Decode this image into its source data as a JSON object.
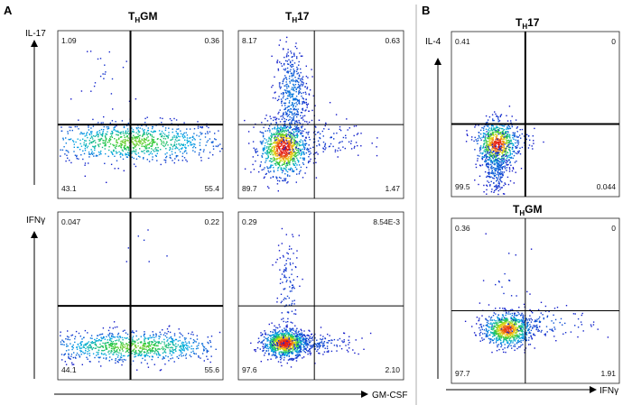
{
  "figure": {
    "panel_a": {
      "letter": "A"
    },
    "panel_b": {
      "letter": "B"
    }
  },
  "chart_data": [
    {
      "type": "scatter",
      "subtype": "flow-cytometry-density",
      "panel": "A",
      "title_main": "T",
      "title_sub": "H",
      "title_rest": "GM",
      "xlabel": "",
      "ylabel": "IL-17",
      "quadrants": {
        "upper_left": "1.09",
        "upper_right": "0.36",
        "lower_left": "43.1",
        "lower_right": "55.4"
      },
      "gate": [
        0.44,
        0.44
      ],
      "populations": [
        {
          "cx": 0.45,
          "cy": 0.34,
          "sx": 0.28,
          "sy": 0.06,
          "n": 900,
          "peak": 0.55
        },
        {
          "cx": 0.3,
          "cy": 0.75,
          "sx": 0.1,
          "sy": 0.12,
          "n": 25,
          "peak": 0.05
        }
      ]
    },
    {
      "type": "scatter",
      "subtype": "flow-cytometry-density",
      "panel": "A",
      "title_main": "T",
      "title_sub": "H",
      "title_rest": "17",
      "xlabel": "GM-CSF",
      "ylabel": "",
      "quadrants": {
        "upper_left": "8.17",
        "upper_right": "0.63",
        "lower_left": "89.7",
        "lower_right": "1.47"
      },
      "gate": [
        0.46,
        0.44
      ],
      "populations": [
        {
          "cx": 0.27,
          "cy": 0.3,
          "sx": 0.07,
          "sy": 0.08,
          "n": 900,
          "peak": 0.95
        },
        {
          "cx": 0.32,
          "cy": 0.62,
          "sx": 0.05,
          "sy": 0.15,
          "n": 450,
          "peak": 0.18
        },
        {
          "cx": 0.5,
          "cy": 0.36,
          "sx": 0.14,
          "sy": 0.06,
          "n": 120,
          "peak": 0.08
        }
      ]
    },
    {
      "type": "scatter",
      "subtype": "flow-cytometry-density",
      "panel": "A",
      "title_main": "",
      "title_sub": "",
      "title_rest": "",
      "xlabel": "",
      "ylabel": "IFNγ",
      "quadrants": {
        "upper_left": "0.047",
        "upper_right": "0.22",
        "lower_left": "44.1",
        "lower_right": "55.6"
      },
      "gate": [
        0.44,
        0.44
      ],
      "populations": [
        {
          "cx": 0.45,
          "cy": 0.2,
          "sx": 0.27,
          "sy": 0.045,
          "n": 900,
          "peak": 0.55
        },
        {
          "cx": 0.55,
          "cy": 0.8,
          "sx": 0.15,
          "sy": 0.08,
          "n": 8,
          "peak": 0.05
        }
      ]
    },
    {
      "type": "scatter",
      "subtype": "flow-cytometry-density",
      "panel": "A",
      "title_main": "",
      "title_sub": "",
      "title_rest": "",
      "xlabel": "",
      "ylabel": "",
      "quadrants": {
        "upper_left": "0.29",
        "upper_right": "8.54E-3",
        "lower_left": "97.6",
        "lower_right": "2.10"
      },
      "gate": [
        0.46,
        0.44
      ],
      "populations": [
        {
          "cx": 0.28,
          "cy": 0.22,
          "sx": 0.065,
          "sy": 0.04,
          "n": 950,
          "peak": 0.95
        },
        {
          "cx": 0.3,
          "cy": 0.55,
          "sx": 0.04,
          "sy": 0.18,
          "n": 120,
          "peak": 0.08
        },
        {
          "cx": 0.45,
          "cy": 0.22,
          "sx": 0.14,
          "sy": 0.035,
          "n": 200,
          "peak": 0.1
        }
      ]
    },
    {
      "type": "scatter",
      "subtype": "flow-cytometry-density",
      "panel": "B",
      "title_main": "T",
      "title_sub": "H",
      "title_rest": "17",
      "xlabel": "",
      "ylabel": "IL-4",
      "quadrants": {
        "upper_left": "0.41",
        "upper_right": "0",
        "lower_left": "99.5",
        "lower_right": "0.044"
      },
      "gate": [
        0.44,
        0.44
      ],
      "populations": [
        {
          "cx": 0.27,
          "cy": 0.32,
          "sx": 0.06,
          "sy": 0.07,
          "n": 700,
          "peak": 0.9
        },
        {
          "cx": 0.26,
          "cy": 0.18,
          "sx": 0.04,
          "sy": 0.08,
          "n": 250,
          "peak": 0.15
        },
        {
          "cx": 0.35,
          "cy": 0.35,
          "sx": 0.1,
          "sy": 0.05,
          "n": 60,
          "peak": 0.1
        }
      ]
    },
    {
      "type": "scatter",
      "subtype": "flow-cytometry-density",
      "panel": "B",
      "title_main": "T",
      "title_sub": "H",
      "title_rest": "GM",
      "xlabel": "IFNγ",
      "ylabel": "",
      "quadrants": {
        "upper_left": "0.36",
        "upper_right": "0",
        "lower_left": "97.7",
        "lower_right": "1.91"
      },
      "gate": [
        0.44,
        0.44
      ],
      "populations": [
        {
          "cx": 0.33,
          "cy": 0.33,
          "sx": 0.07,
          "sy": 0.05,
          "n": 800,
          "peak": 0.85
        },
        {
          "cx": 0.55,
          "cy": 0.37,
          "sx": 0.16,
          "sy": 0.05,
          "n": 120,
          "peak": 0.12
        },
        {
          "cx": 0.32,
          "cy": 0.62,
          "sx": 0.08,
          "sy": 0.15,
          "n": 20,
          "peak": 0.05
        }
      ]
    }
  ]
}
